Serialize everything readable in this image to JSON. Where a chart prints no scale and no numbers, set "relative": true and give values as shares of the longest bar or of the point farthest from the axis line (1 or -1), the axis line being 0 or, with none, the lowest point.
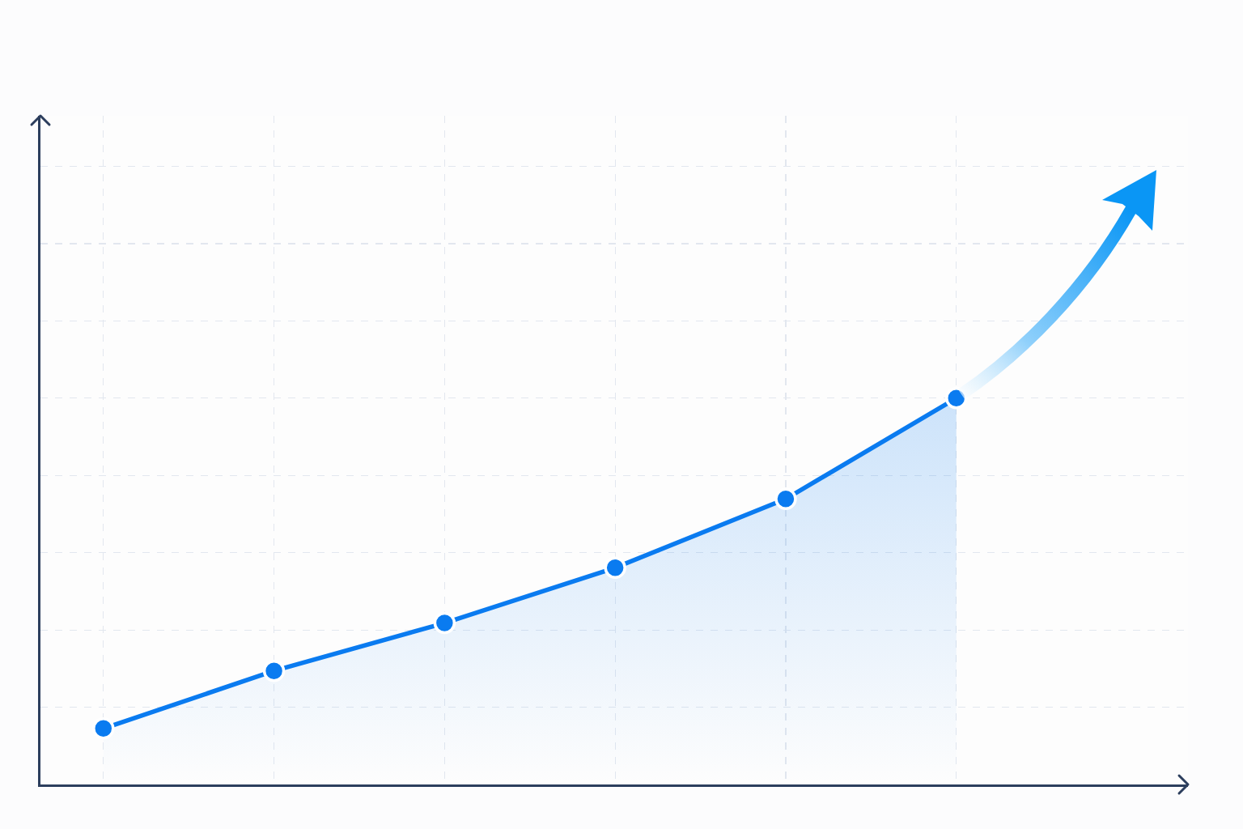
{
  "chart_data": {
    "type": "area",
    "relative": true,
    "categories": [
      null,
      null,
      null,
      null,
      null,
      null
    ],
    "values": [
      0.145,
      0.294,
      0.418,
      0.561,
      0.739,
      1
    ],
    "color": "#0a7bf0",
    "marker": "circle",
    "grid": true
  }
}
